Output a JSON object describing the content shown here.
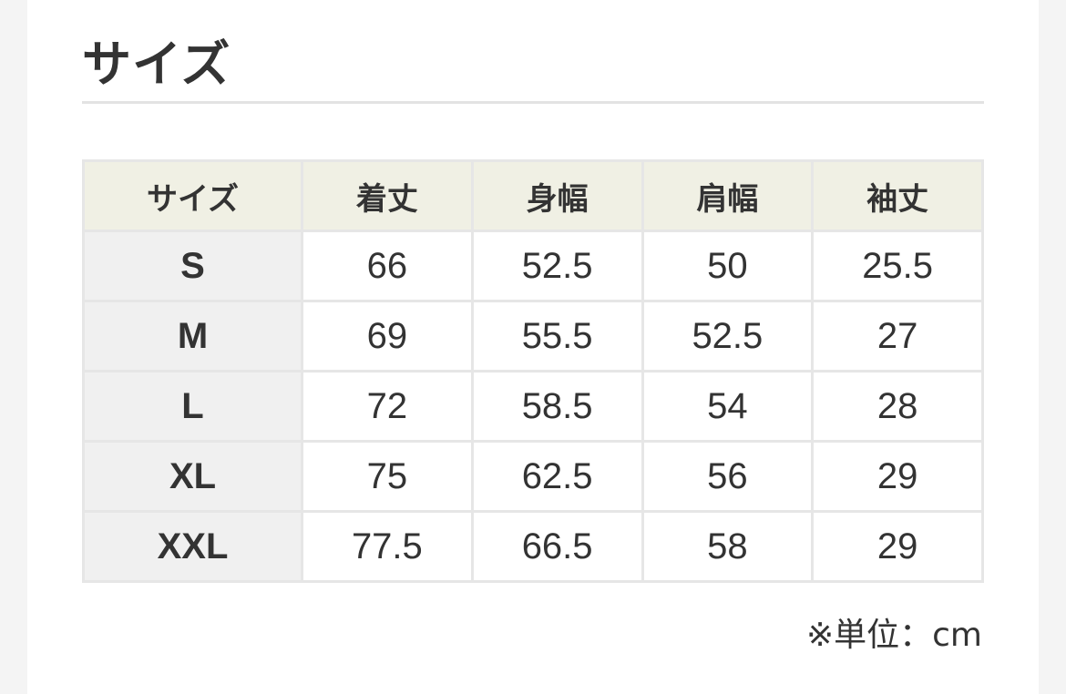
{
  "title": "サイズ",
  "table": {
    "headers": [
      "サイズ",
      "着丈",
      "身幅",
      "肩幅",
      "袖丈"
    ],
    "rows": [
      [
        "S",
        "66",
        "52.5",
        "50",
        "25.5"
      ],
      [
        "M",
        "69",
        "55.5",
        "52.5",
        "27"
      ],
      [
        "L",
        "72",
        "58.5",
        "54",
        "28"
      ],
      [
        "XL",
        "75",
        "62.5",
        "56",
        "29"
      ],
      [
        "XXL",
        "77.5",
        "66.5",
        "58",
        "29"
      ]
    ]
  },
  "unit_note": "※単位：cm",
  "colors": {
    "header_bg": "#f0f0e4",
    "size_col_bg": "#f0f0f0",
    "border": "#e6e6e6",
    "page_bg": "#f4f4f4"
  }
}
